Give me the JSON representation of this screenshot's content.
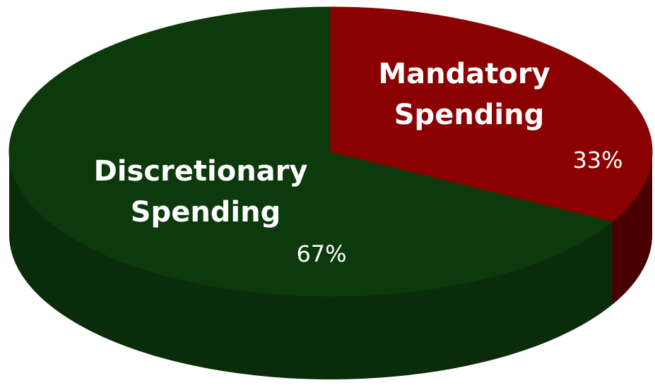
{
  "chart_data": {
    "type": "pie",
    "style": "3d",
    "slices": [
      {
        "label_lines": [
          "Mandatory",
          "Spending"
        ],
        "value": 33,
        "value_label": "33%",
        "color": "#8b0000",
        "side_color": "#4a0000"
      },
      {
        "label_lines": [
          "Discretionary",
          "Spending"
        ],
        "value": 67,
        "value_label": "67%",
        "color": "#0c3a0c",
        "side_color": "#0a2c0a"
      }
    ]
  }
}
